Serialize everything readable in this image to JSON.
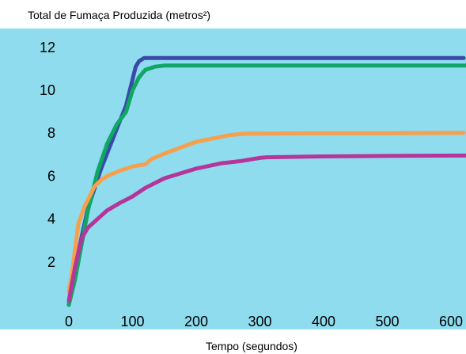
{
  "chart_data": {
    "type": "line",
    "title": "",
    "ylabel": "Total de Fumaça Produzida (metros²)",
    "xlabel": "Tempo (segundos)",
    "xlim": [
      0,
      630
    ],
    "ylim": [
      0,
      12.5
    ],
    "xticks": [
      0,
      100,
      200,
      300,
      400,
      500,
      600
    ],
    "yticks": [
      2,
      4,
      6,
      8,
      10,
      12
    ],
    "grid": false,
    "legend": "none",
    "background_color": "#8fdcef",
    "series": [
      {
        "color": "#3a4aa8",
        "x": [
          0,
          15,
          30,
          50,
          70,
          90,
          105,
          110,
          118,
          130,
          200,
          300,
          400,
          500,
          620
        ],
        "y": [
          0,
          2.5,
          4.5,
          6.3,
          7.8,
          9.3,
          11.1,
          11.35,
          11.5,
          11.5,
          11.5,
          11.5,
          11.5,
          11.5,
          11.5
        ]
      },
      {
        "color": "#10a664",
        "x": [
          0,
          10,
          20,
          30,
          45,
          60,
          75,
          90,
          100,
          110,
          120,
          135,
          150,
          200,
          300,
          400,
          500,
          630
        ],
        "y": [
          0,
          1.2,
          2.8,
          4.4,
          6.2,
          7.5,
          8.4,
          9.0,
          10.0,
          10.6,
          10.95,
          11.1,
          11.15,
          11.15,
          11.15,
          11.15,
          11.15,
          11.15
        ]
      },
      {
        "color": "#f6a04d",
        "x": [
          0,
          5,
          15,
          25,
          40,
          50,
          60,
          80,
          100,
          110,
          120,
          130,
          150,
          200,
          250,
          270,
          280,
          300,
          400,
          500,
          620
        ],
        "y": [
          0.6,
          1.5,
          3.8,
          4.6,
          5.5,
          5.8,
          6.0,
          6.25,
          6.45,
          6.5,
          6.55,
          6.8,
          7.05,
          7.6,
          7.9,
          7.96,
          7.98,
          7.98,
          8.0,
          8.0,
          8.02
        ]
      },
      {
        "color": "#b5359a",
        "x": [
          0,
          10,
          20,
          30,
          45,
          60,
          80,
          100,
          120,
          150,
          200,
          240,
          270,
          290,
          300,
          310,
          400,
          500,
          630
        ],
        "y": [
          0.2,
          1.8,
          3.1,
          3.6,
          4.0,
          4.4,
          4.75,
          5.05,
          5.45,
          5.9,
          6.35,
          6.6,
          6.7,
          6.8,
          6.85,
          6.88,
          6.92,
          6.94,
          6.96
        ]
      }
    ]
  }
}
